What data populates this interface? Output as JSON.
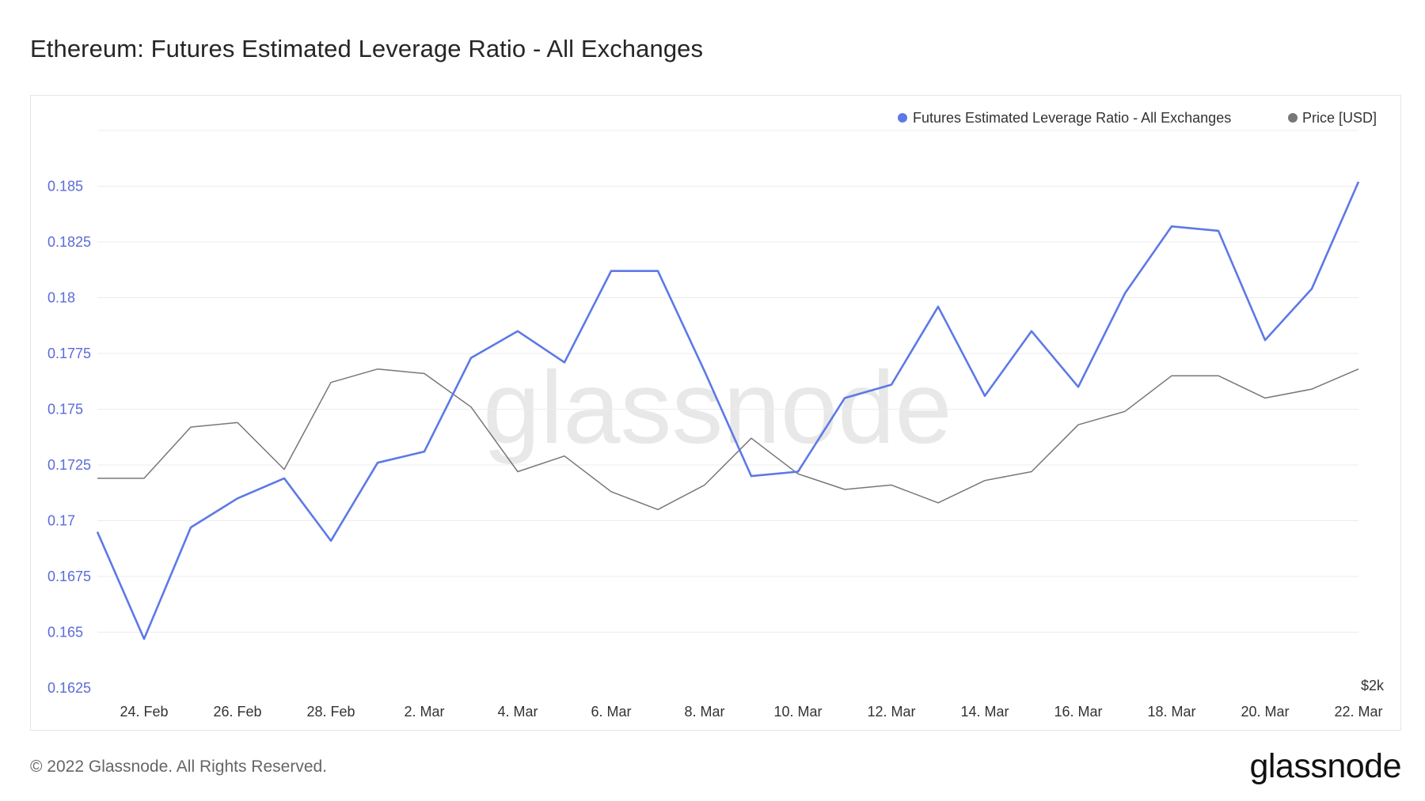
{
  "page": {
    "title": "Ethereum: Futures Estimated Leverage Ratio - All Exchanges",
    "copyright": "© 2022 Glassnode. All Rights Reserved.",
    "logo": "glassnode",
    "watermark": "glassnode"
  },
  "chart_data": {
    "type": "line",
    "title": "Ethereum: Futures Estimated Leverage Ratio - All Exchanges",
    "legend_position": "top-right",
    "grid": true,
    "x_ticks": [
      "24. Feb",
      "26. Feb",
      "28. Feb",
      "2. Mar",
      "4. Mar",
      "6. Mar",
      "8. Mar",
      "10. Mar",
      "12. Mar",
      "14. Mar",
      "16. Mar",
      "18. Mar",
      "20. Mar",
      "22. Mar"
    ],
    "y_ticks": [
      "0.185",
      "0.1825",
      "0.18",
      "0.1775",
      "0.175",
      "0.1725",
      "0.17",
      "0.1675",
      "0.165",
      "0.1625"
    ],
    "ylim": [
      0.1625,
      0.1875
    ],
    "right_axis_label": "$2k",
    "x": [
      "23. Feb",
      "24. Feb",
      "25. Feb",
      "26. Feb",
      "27. Feb",
      "28. Feb",
      "1. Mar",
      "2. Mar",
      "3. Mar",
      "4. Mar",
      "5. Mar",
      "6. Mar",
      "7. Mar",
      "8. Mar",
      "9. Mar",
      "10. Mar",
      "11. Mar",
      "12. Mar",
      "13. Mar",
      "14. Mar",
      "15. Mar",
      "16. Mar",
      "17. Mar",
      "18. Mar",
      "19. Mar",
      "20. Mar",
      "21. Mar",
      "22. Mar"
    ],
    "series": [
      {
        "name": "Futures Estimated Leverage Ratio - All Exchanges",
        "color": "#5d79e6",
        "axis": "left",
        "values": [
          0.1695,
          0.1647,
          0.1697,
          0.171,
          0.1719,
          0.1691,
          0.1726,
          0.1731,
          0.1773,
          0.1785,
          0.1771,
          0.1812,
          0.1812,
          0.1767,
          0.172,
          0.1722,
          0.1755,
          0.1761,
          0.1796,
          0.1756,
          0.1785,
          0.176,
          0.1802,
          0.1832,
          0.183,
          0.1781,
          0.1804,
          0.1852
        ]
      },
      {
        "name": "Price [USD]",
        "color": "#777777",
        "axis": "right",
        "values_on_left_scale": [
          0.1719,
          0.1719,
          0.1742,
          0.1744,
          0.1723,
          0.1762,
          0.1768,
          0.1766,
          0.1751,
          0.1722,
          0.1729,
          0.1713,
          0.1705,
          0.1716,
          0.1737,
          0.1721,
          0.1714,
          0.1716,
          0.1708,
          0.1718,
          0.1722,
          0.1743,
          0.1749,
          0.1765,
          0.1765,
          0.1755,
          0.1759,
          0.1768
        ]
      }
    ]
  }
}
